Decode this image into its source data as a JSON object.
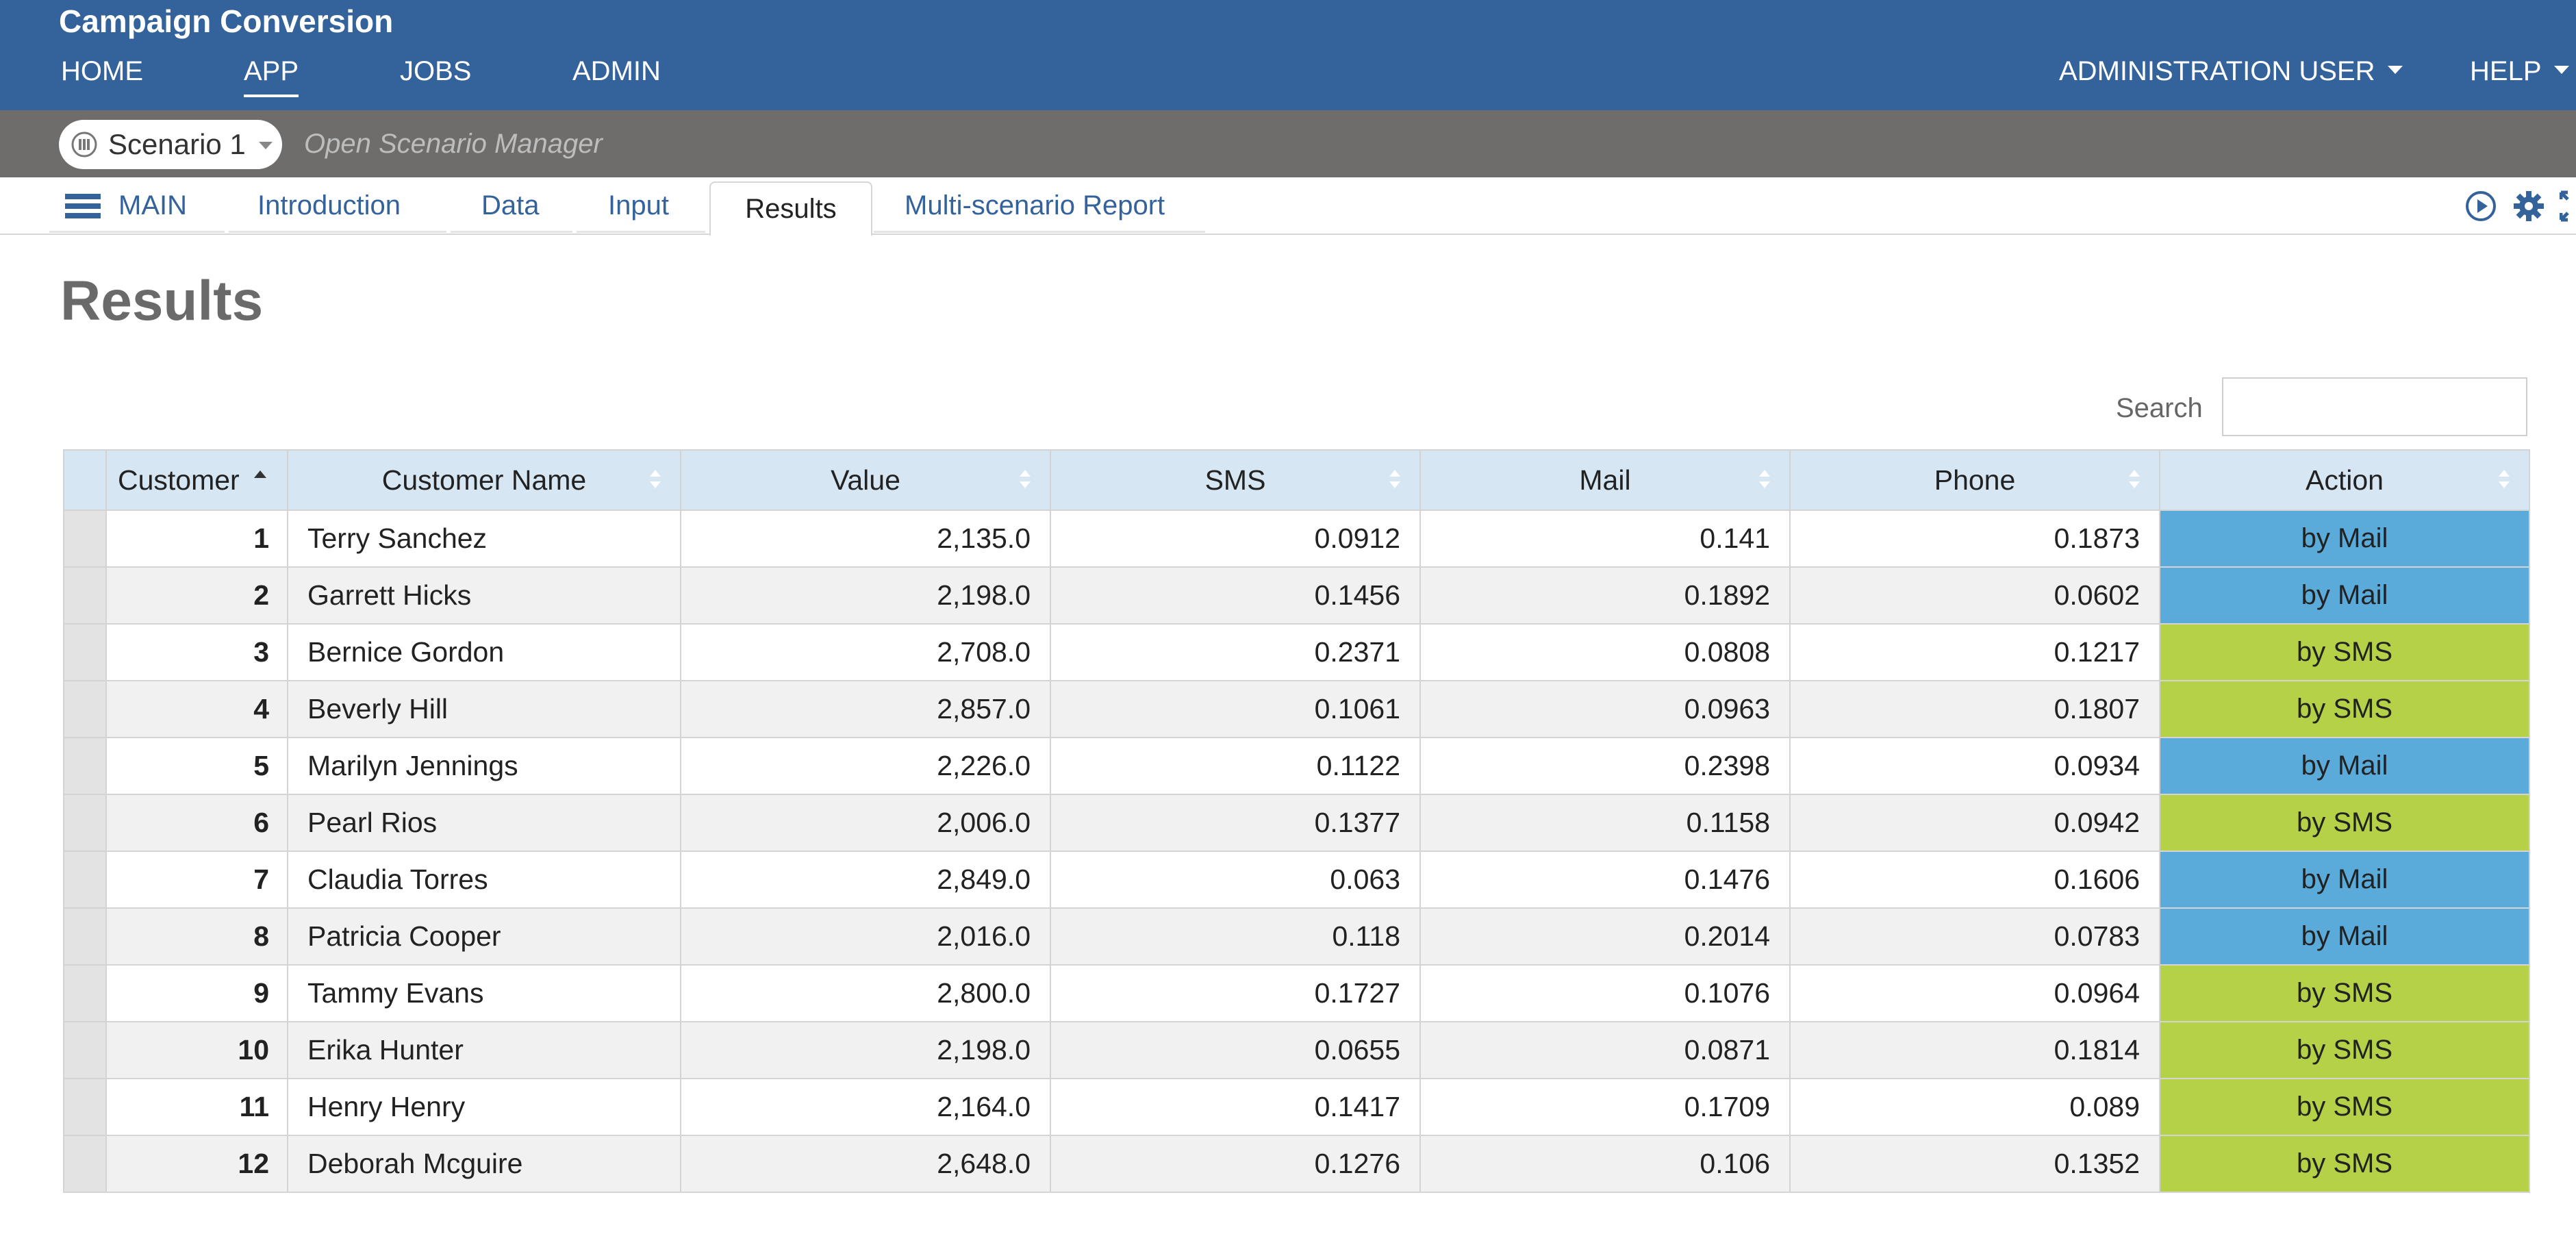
{
  "app": {
    "title": "Campaign Conversion"
  },
  "topnav": {
    "items": [
      {
        "label": "HOME"
      },
      {
        "label": "APP"
      },
      {
        "label": "JOBS"
      },
      {
        "label": "ADMIN"
      }
    ],
    "active": "APP",
    "user_label": "ADMINISTRATION USER",
    "help_label": "HELP"
  },
  "scenario": {
    "name": "Scenario 1",
    "open_manager_label": "Open Scenario Manager"
  },
  "tabs": {
    "main_label": "MAIN",
    "items": [
      {
        "label": "Introduction"
      },
      {
        "label": "Data"
      },
      {
        "label": "Input"
      },
      {
        "label": "Results"
      },
      {
        "label": "Multi-scenario Report"
      }
    ],
    "active": "Results",
    "icons": [
      "play-icon",
      "gear-icon",
      "fullscreen-icon"
    ]
  },
  "page": {
    "title": "Results"
  },
  "search": {
    "label": "Search",
    "value": ""
  },
  "table": {
    "columns": [
      "Customer",
      "Customer Name",
      "Value",
      "SMS",
      "Mail",
      "Phone",
      "Action"
    ],
    "sorted_column": "Customer",
    "sort_direction": "ascending",
    "rows": [
      {
        "id": "1",
        "name": "Terry Sanchez",
        "value": "2,135.0",
        "sms": "0.0912",
        "mail": "0.141",
        "phone": "0.1873",
        "action": "by Mail"
      },
      {
        "id": "2",
        "name": "Garrett Hicks",
        "value": "2,198.0",
        "sms": "0.1456",
        "mail": "0.1892",
        "phone": "0.0602",
        "action": "by Mail"
      },
      {
        "id": "3",
        "name": "Bernice Gordon",
        "value": "2,708.0",
        "sms": "0.2371",
        "mail": "0.0808",
        "phone": "0.1217",
        "action": "by SMS"
      },
      {
        "id": "4",
        "name": "Beverly Hill",
        "value": "2,857.0",
        "sms": "0.1061",
        "mail": "0.0963",
        "phone": "0.1807",
        "action": "by SMS"
      },
      {
        "id": "5",
        "name": "Marilyn Jennings",
        "value": "2,226.0",
        "sms": "0.1122",
        "mail": "0.2398",
        "phone": "0.0934",
        "action": "by Mail"
      },
      {
        "id": "6",
        "name": "Pearl Rios",
        "value": "2,006.0",
        "sms": "0.1377",
        "mail": "0.1158",
        "phone": "0.0942",
        "action": "by SMS"
      },
      {
        "id": "7",
        "name": "Claudia Torres",
        "value": "2,849.0",
        "sms": "0.063",
        "mail": "0.1476",
        "phone": "0.1606",
        "action": "by Mail"
      },
      {
        "id": "8",
        "name": "Patricia Cooper",
        "value": "2,016.0",
        "sms": "0.118",
        "mail": "0.2014",
        "phone": "0.0783",
        "action": "by Mail"
      },
      {
        "id": "9",
        "name": "Tammy Evans",
        "value": "2,800.0",
        "sms": "0.1727",
        "mail": "0.1076",
        "phone": "0.0964",
        "action": "by SMS"
      },
      {
        "id": "10",
        "name": "Erika Hunter",
        "value": "2,198.0",
        "sms": "0.0655",
        "mail": "0.0871",
        "phone": "0.1814",
        "action": "by SMS"
      },
      {
        "id": "11",
        "name": "Henry Henry",
        "value": "2,164.0",
        "sms": "0.1417",
        "mail": "0.1709",
        "phone": "0.089",
        "action": "by SMS"
      },
      {
        "id": "12",
        "name": "Deborah Mcguire",
        "value": "2,648.0",
        "sms": "0.1276",
        "mail": "0.106",
        "phone": "0.1352",
        "action": "by SMS"
      }
    ]
  },
  "colors": {
    "header_blue": "#34629b",
    "scenario_bar_gray": "#6f6d6b",
    "table_header": "#d6e6f3",
    "action_mail": "#5aabda",
    "action_sms": "#b4d148"
  }
}
